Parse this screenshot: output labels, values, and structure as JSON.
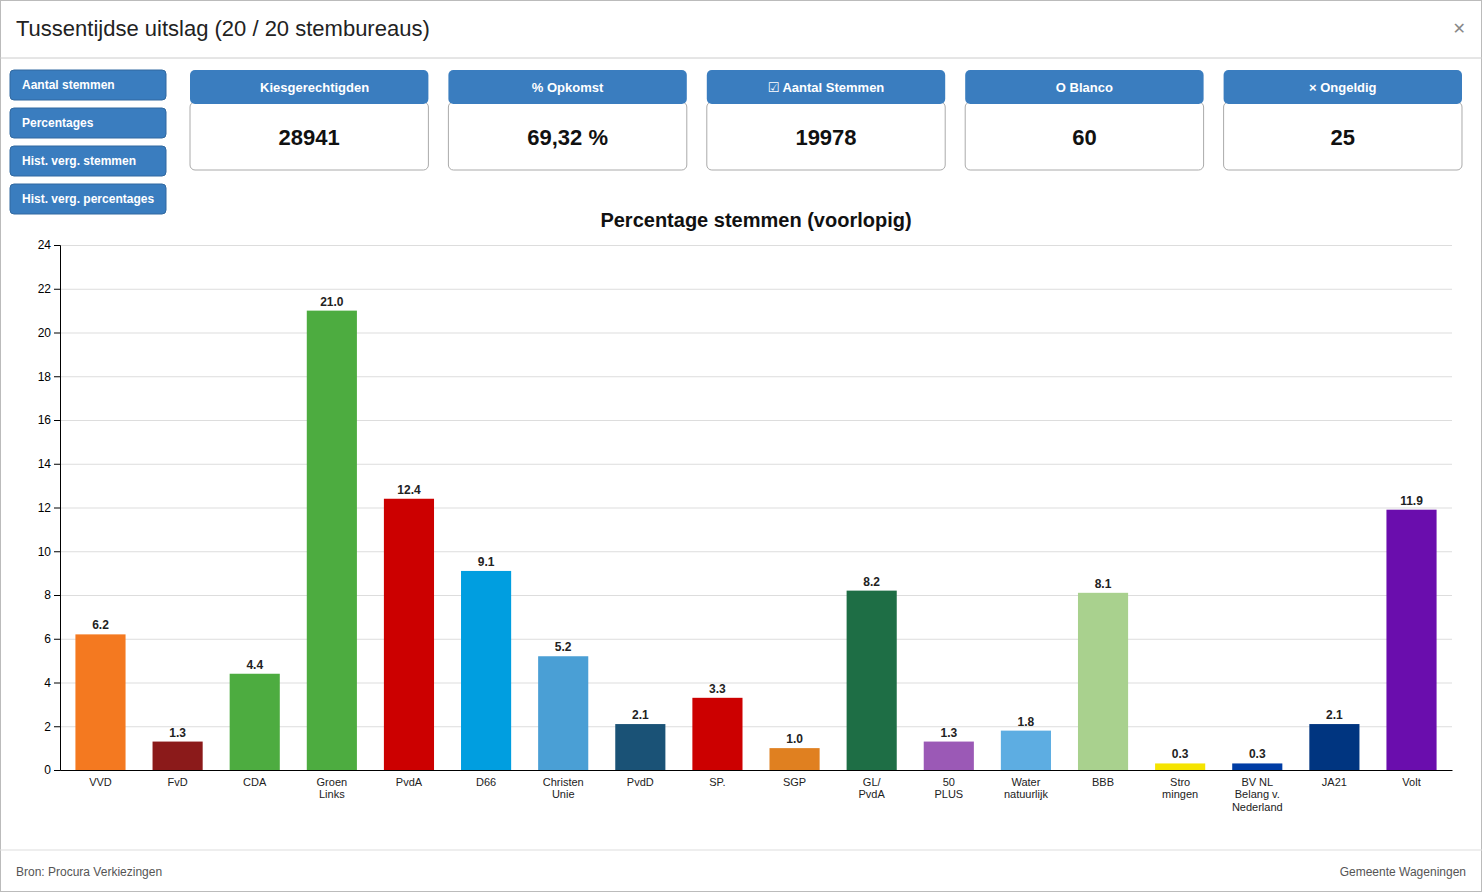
{
  "page_title": "Tussentijdse uitslag (20 / 20 stembureaus)",
  "close_button": "✕",
  "buttons": [
    "Aantal stemmen",
    "Percentages",
    "Hist. verg. stemmen",
    "Hist. verg. percentages"
  ],
  "button_color": "#3a7dbf",
  "card_header_color": "#3a7dbf",
  "info_cards": [
    {
      "label": "   Kiesgerechtigden",
      "value": "28941"
    },
    {
      "label": "% Opkomst",
      "value": "69,32 %"
    },
    {
      "label": "☑ Aantal Stemmen",
      "value": "19978"
    },
    {
      "label": "O Blanco",
      "value": "60"
    },
    {
      "label": "× Ongeldig",
      "value": "25"
    }
  ],
  "footer_left": "Bron: Procura Verkiezingen",
  "footer_right": "Gemeente Wageningen",
  "chart_data": {
    "type": "bar",
    "title": "Percentage stemmen (voorlopig)",
    "categories": [
      "VVD",
      "FvD",
      "CDA",
      "Groen\nLinks",
      "PvdA",
      "D66",
      "Christen\nUnie",
      "PvdD",
      "SP.",
      "SGP",
      "GL/\nPvdA",
      "50\nPLUS",
      "Water\nnatuurlijk",
      "BBB",
      "Stro\nmingen",
      "BV NL\nBelang v.\nNederland",
      "JA21",
      "Volt"
    ],
    "values": [
      6.2,
      1.3,
      4.4,
      21.0,
      12.4,
      9.1,
      5.2,
      2.1,
      3.3,
      1.0,
      8.2,
      1.3,
      1.8,
      8.1,
      0.3,
      0.3,
      2.1,
      11.9
    ],
    "value_labels": [
      "6.2",
      "1.3",
      "4.4",
      "21.0",
      "12.4",
      "9.1",
      "5.2",
      "2.1",
      "3.3",
      "1.0",
      "8.2",
      "1.3",
      "1.8",
      "8.1",
      "0.3",
      "0.3",
      "2.1",
      "11.9"
    ],
    "colors": [
      "#f47920",
      "#8b1a1a",
      "#4dac40",
      "#4dac40",
      "#cc0000",
      "#009ee0",
      "#4a9fd5",
      "#1a5276",
      "#cc0000",
      "#e08020",
      "#1e6e45",
      "#9b59b6",
      "#5dade2",
      "#a9d18e",
      "#f5e400",
      "#003da5",
      "#003580",
      "#6a0dad"
    ],
    "ylim": [
      0,
      24
    ],
    "yticks": [
      0,
      2,
      4,
      6,
      8,
      10,
      12,
      14,
      16,
      18,
      20,
      22,
      24
    ],
    "grid": true,
    "data_labels": true
  }
}
